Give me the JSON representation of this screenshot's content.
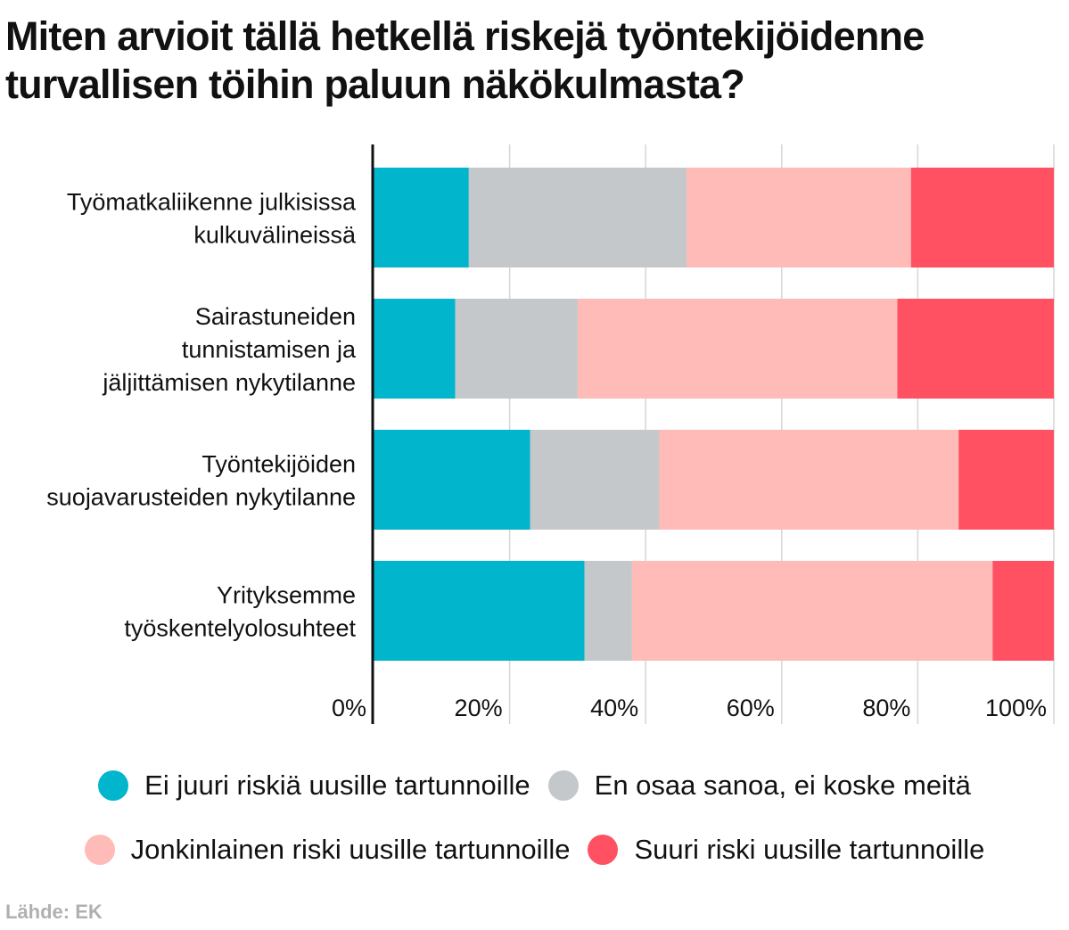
{
  "chart_data": {
    "type": "bar",
    "orientation": "horizontal",
    "stacked": true,
    "title": "Miten arvioit tällä hetkellä riskejä työntekijöidenne turvallisen töihin paluun näkökulmasta?",
    "categories": [
      [
        "Työmatkaliikenne julkisissa",
        "kulkuvälineissä"
      ],
      [
        "Sairastuneiden",
        "tunnistamisen ja",
        "jäljittämisen nykytilanne"
      ],
      [
        "Työntekijöiden",
        "suojavarusteiden nykytilanne"
      ],
      [
        "Yrityksemme",
        "työskentelyolosuhteet"
      ]
    ],
    "series": [
      {
        "name": "Ei juuri riskiä uusille tartunnoille",
        "color": "#00b5cc",
        "values": [
          14,
          12,
          23,
          31
        ]
      },
      {
        "name": "En osaa sanoa, ei koske meitä",
        "color": "#c4c8ca",
        "values": [
          32,
          18,
          19,
          7
        ]
      },
      {
        "name": "Jonkinlainen riski uusille tartunnoille",
        "color": "#ffbbb8",
        "values": [
          33,
          47,
          44,
          53
        ]
      },
      {
        "name": "Suuri riski uusille tartunnoille",
        "color": "#ff5162",
        "values": [
          21,
          23,
          14,
          9
        ]
      }
    ],
    "x_ticks": [
      "0%",
      "20%",
      "40%",
      "60%",
      "80%",
      "100%"
    ],
    "xlim": [
      0,
      100
    ],
    "grid": true,
    "legend_position": "bottom"
  },
  "source": "Lähde: EK"
}
